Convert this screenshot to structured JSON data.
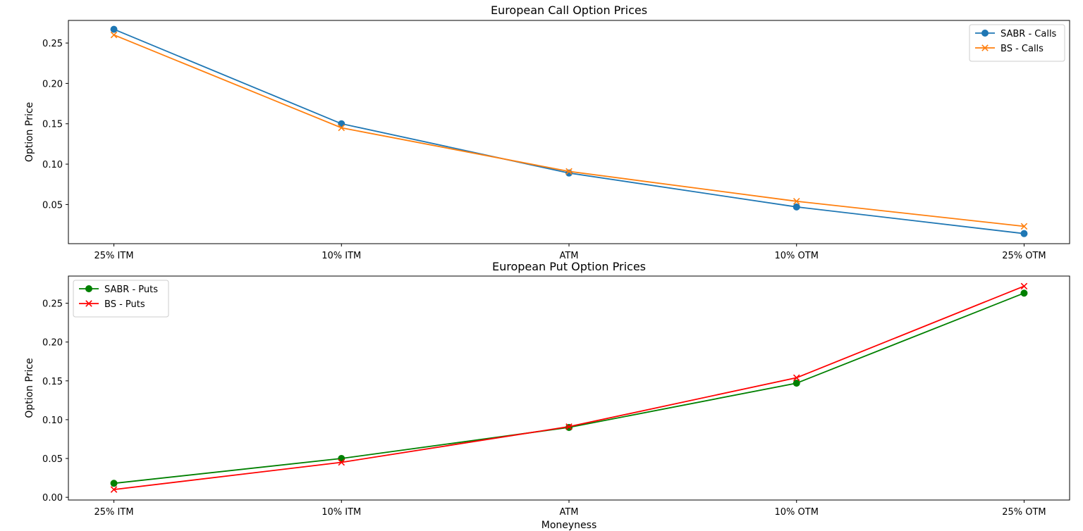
{
  "chart_data": [
    {
      "type": "line",
      "title": "European Call Option Prices",
      "xlabel": "",
      "ylabel": "Option Price",
      "categories": [
        "25% ITM",
        "10% ITM",
        "ATM",
        "10% OTM",
        "25% OTM"
      ],
      "ylim": [
        0.0015,
        0.278
      ],
      "yticks": [
        0.05,
        0.1,
        0.15,
        0.2,
        0.25
      ],
      "ytick_labels": [
        "0.05",
        "0.10",
        "0.15",
        "0.20",
        "0.25"
      ],
      "grid": false,
      "legend_position": "top-right",
      "series": [
        {
          "name": "SABR - Calls",
          "color": "#1f77b4",
          "marker": "circle",
          "values": [
            0.267,
            0.15,
            0.089,
            0.047,
            0.014
          ]
        },
        {
          "name": "BS - Calls",
          "color": "#ff7f0e",
          "marker": "x",
          "values": [
            0.26,
            0.145,
            0.091,
            0.054,
            0.023
          ]
        }
      ]
    },
    {
      "type": "line",
      "title": "European Put Option Prices",
      "xlabel": "Moneyness",
      "ylabel": "Option Price",
      "categories": [
        "25% ITM",
        "10% ITM",
        "ATM",
        "10% OTM",
        "25% OTM"
      ],
      "ylim": [
        -0.0035,
        0.285
      ],
      "yticks": [
        0.0,
        0.05,
        0.1,
        0.15,
        0.2,
        0.25
      ],
      "ytick_labels": [
        "0.00",
        "0.05",
        "0.10",
        "0.15",
        "0.20",
        "0.25"
      ],
      "grid": false,
      "legend_position": "top-left",
      "series": [
        {
          "name": "SABR - Puts",
          "color": "#008000",
          "marker": "circle",
          "values": [
            0.018,
            0.05,
            0.09,
            0.147,
            0.263
          ]
        },
        {
          "name": "BS - Puts",
          "color": "#ff0000",
          "marker": "x",
          "values": [
            0.01,
            0.045,
            0.091,
            0.154,
            0.272
          ]
        }
      ]
    }
  ]
}
